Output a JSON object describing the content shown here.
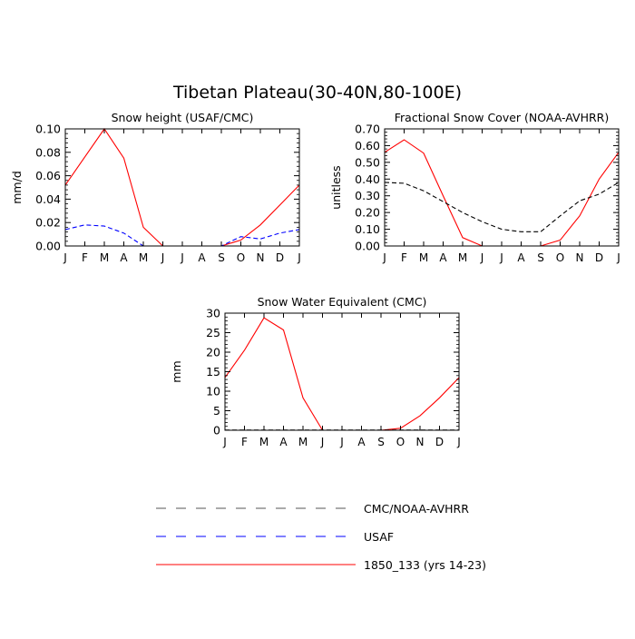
{
  "page_title": "Tibetan Plateau(30-40N,80-100E)",
  "chart_data": [
    {
      "type": "line",
      "title": "Snow height (USAF/CMC)",
      "ylabel": "mm/d",
      "xlabel": "",
      "categories": [
        "J",
        "F",
        "M",
        "A",
        "M",
        "J",
        "J",
        "A",
        "S",
        "O",
        "N",
        "D",
        "J"
      ],
      "ylim": [
        0,
        0.1
      ],
      "yticks": [
        "0.00",
        "0.02",
        "0.04",
        "0.06",
        "0.08",
        "0.10"
      ],
      "ytick_values": [
        0,
        0.02,
        0.04,
        0.06,
        0.08,
        0.1
      ],
      "series": [
        {
          "key": "model",
          "color": "#ff0000",
          "dash": "solid",
          "values": [
            0.052,
            0.076,
            0.1,
            0.075,
            0.016,
            0.0,
            0.0,
            0.0,
            0.0,
            0.005,
            0.018,
            0.035,
            0.052
          ]
        },
        {
          "key": "usaf",
          "color": "#0000ff",
          "dash": "dashed",
          "values": [
            0.014,
            0.018,
            0.017,
            0.011,
            0.0,
            0.0,
            0.0,
            0.0,
            0.0,
            0.008,
            0.006,
            0.011,
            0.014
          ]
        }
      ]
    },
    {
      "type": "line",
      "title": "Fractional Snow Cover (NOAA-AVHRR)",
      "ylabel": "unitless",
      "xlabel": "",
      "categories": [
        "J",
        "F",
        "M",
        "A",
        "M",
        "J",
        "J",
        "A",
        "S",
        "O",
        "N",
        "D",
        "J"
      ],
      "ylim": [
        0,
        0.7
      ],
      "yticks": [
        "0.00",
        "0.10",
        "0.20",
        "0.30",
        "0.40",
        "0.50",
        "0.60",
        "0.70"
      ],
      "ytick_values": [
        0,
        0.1,
        0.2,
        0.3,
        0.4,
        0.5,
        0.6,
        0.7
      ],
      "series": [
        {
          "key": "model",
          "color": "#ff0000",
          "dash": "solid",
          "values": [
            0.56,
            0.635,
            0.555,
            0.3,
            0.05,
            0.0,
            0.0,
            0.0,
            0.0,
            0.035,
            0.18,
            0.4,
            0.56
          ]
        },
        {
          "key": "cmc",
          "color": "#000000",
          "dash": "dashed",
          "values": [
            0.38,
            0.375,
            0.33,
            0.265,
            0.2,
            0.145,
            0.1,
            0.085,
            0.085,
            0.18,
            0.27,
            0.31,
            0.38
          ]
        }
      ]
    },
    {
      "type": "line",
      "title": "Snow Water Equivalent (CMC)",
      "ylabel": "mm",
      "xlabel": "",
      "categories": [
        "J",
        "F",
        "M",
        "A",
        "M",
        "J",
        "J",
        "A",
        "S",
        "O",
        "N",
        "D",
        "J"
      ],
      "ylim": [
        0,
        30
      ],
      "yticks": [
        "0",
        "5",
        "10",
        "15",
        "20",
        "25",
        "30"
      ],
      "ytick_values": [
        0,
        5,
        10,
        15,
        20,
        25,
        30
      ],
      "series": [
        {
          "key": "model",
          "color": "#ff0000",
          "dash": "solid",
          "values": [
            13.5,
            20.5,
            28.8,
            25.7,
            8.3,
            0.0,
            0.0,
            0.0,
            0.0,
            0.5,
            3.7,
            8.3,
            13.5
          ]
        },
        {
          "key": "cmc",
          "color": "#000000",
          "dash": "dashed",
          "values": [
            0.05,
            0.05,
            0.05,
            0.05,
            0.05,
            0.05,
            0.05,
            0.05,
            0.05,
            0.05,
            0.05,
            0.05,
            0.05
          ]
        }
      ]
    }
  ],
  "legend": {
    "placement": "bottom",
    "items": [
      {
        "label": "CMC/NOAA-AVHRR",
        "color": "#555555",
        "dash": "dashed"
      },
      {
        "label": "USAF",
        "color": "#0000ff",
        "dash": "dashed"
      },
      {
        "label": "1850_133 (yrs 14-23)",
        "color": "#ff0000",
        "dash": "solid"
      }
    ]
  }
}
